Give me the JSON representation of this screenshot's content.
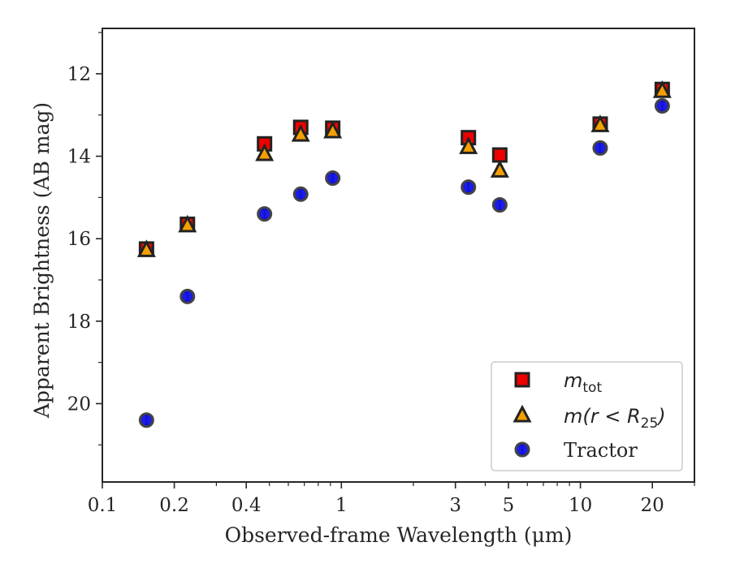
{
  "chart_data": {
    "type": "scatter",
    "xlabel": "Observed-frame Wavelength (μm)",
    "ylabel": "Apparent Brightness (AB mag)",
    "xscale": "log",
    "xlim": [
      0.1,
      30
    ],
    "ylim": [
      21.9,
      10.9
    ],
    "y_inverted": true,
    "x_ticks": [
      0.1,
      0.2,
      0.4,
      1,
      3,
      5,
      10,
      20
    ],
    "x_tick_labels": [
      "0.1",
      "0.2",
      "0.4",
      "1",
      "3",
      "5",
      "10",
      "20"
    ],
    "y_ticks": [
      12,
      14,
      16,
      18,
      20
    ],
    "y_tick_labels": [
      "12",
      "14",
      "16",
      "18",
      "20"
    ],
    "grid": false,
    "legend_position": "bottom-right",
    "series": [
      {
        "key": "mtot",
        "marker": "square",
        "color": "#ee0000",
        "edge": "#222222",
        "legend": {
          "base": "m",
          "sub": "tot"
        },
        "points": [
          {
            "x": 0.153,
            "y": 16.25
          },
          {
            "x": 0.227,
            "y": 15.65
          },
          {
            "x": 0.477,
            "y": 13.7
          },
          {
            "x": 0.676,
            "y": 13.3
          },
          {
            "x": 0.92,
            "y": 13.32
          },
          {
            "x": 3.4,
            "y": 13.55
          },
          {
            "x": 4.6,
            "y": 13.97
          },
          {
            "x": 12.1,
            "y": 13.22
          },
          {
            "x": 22.0,
            "y": 12.38
          }
        ]
      },
      {
        "key": "mr25",
        "marker": "triangle",
        "color": "#f5a000",
        "edge": "#222222",
        "legend": {
          "pre": "m(r < R",
          "sub": "25",
          "post": ")"
        },
        "points": [
          {
            "x": 0.153,
            "y": 16.28
          },
          {
            "x": 0.227,
            "y": 15.68
          },
          {
            "x": 0.477,
            "y": 13.95
          },
          {
            "x": 0.676,
            "y": 13.48
          },
          {
            "x": 0.92,
            "y": 13.4
          },
          {
            "x": 3.4,
            "y": 13.78
          },
          {
            "x": 4.6,
            "y": 14.35
          },
          {
            "x": 12.1,
            "y": 13.25
          },
          {
            "x": 22.0,
            "y": 12.42
          }
        ]
      },
      {
        "key": "tractor",
        "marker": "circle",
        "color": "#1010e0",
        "edge": "#444444",
        "legend": {
          "text": "Tractor"
        },
        "points": [
          {
            "x": 0.153,
            "y": 20.4
          },
          {
            "x": 0.227,
            "y": 17.4
          },
          {
            "x": 0.477,
            "y": 15.4
          },
          {
            "x": 0.676,
            "y": 14.92
          },
          {
            "x": 0.92,
            "y": 14.53
          },
          {
            "x": 3.4,
            "y": 14.75
          },
          {
            "x": 4.6,
            "y": 15.18
          },
          {
            "x": 12.1,
            "y": 13.8
          },
          {
            "x": 22.0,
            "y": 12.78
          }
        ]
      }
    ]
  }
}
